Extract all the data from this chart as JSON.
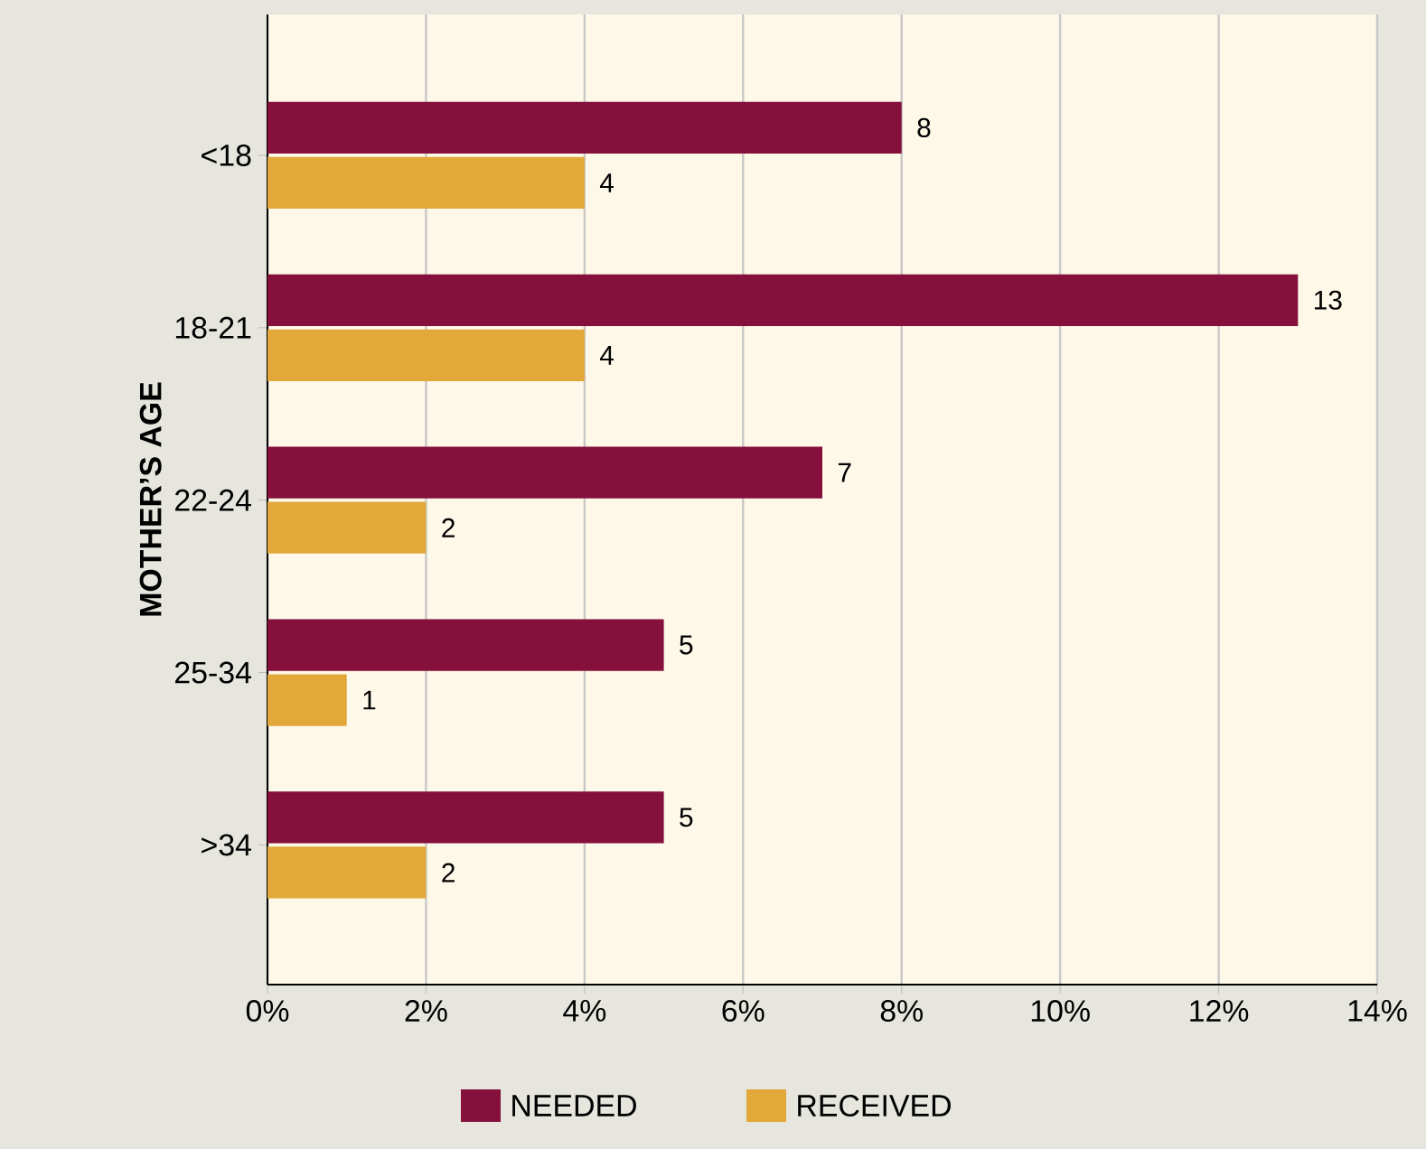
{
  "chart_data": {
    "type": "bar",
    "orientation": "horizontal",
    "ylabel": "MOTHER’S AGE",
    "categories": [
      "<18",
      "18-21",
      "22-24",
      "25-34",
      ">34"
    ],
    "series": [
      {
        "name": "NEEDED",
        "color": "#85103c",
        "values": [
          8,
          13,
          7,
          5,
          5
        ]
      },
      {
        "name": "RECEIVED",
        "color": "#e2a93a",
        "values": [
          4,
          4,
          2,
          1,
          2
        ]
      }
    ],
    "xlim": [
      0,
      14
    ],
    "xticks": [
      {
        "value": 0,
        "label": "0%"
      },
      {
        "value": 2,
        "label": "2%"
      },
      {
        "value": 4,
        "label": "4%"
      },
      {
        "value": 6,
        "label": "6%"
      },
      {
        "value": 8,
        "label": "8%"
      },
      {
        "value": 10,
        "label": "10%"
      },
      {
        "value": 12,
        "label": "12%"
      },
      {
        "value": 14,
        "label": "14%"
      }
    ],
    "grid": "x",
    "legend": "bottom",
    "data_labels": true
  }
}
